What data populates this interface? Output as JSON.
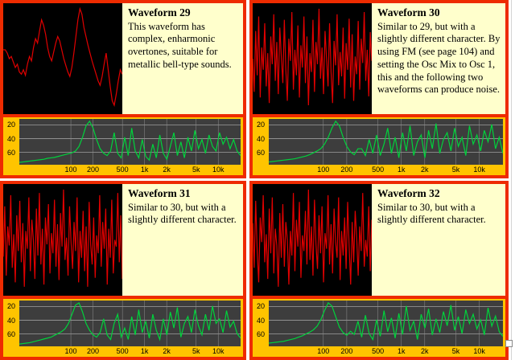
{
  "panels": [
    {
      "title": "Waveform 29",
      "description": "This waveform has complex, enharmonic overtones, suitable for metallic bell-type sounds.",
      "wave": [
        58,
        58,
        55,
        50,
        52,
        47,
        42,
        45,
        38,
        36,
        40,
        35,
        45,
        52,
        48,
        60,
        68,
        64,
        75,
        85,
        80,
        72,
        60,
        52,
        48,
        56,
        64,
        70,
        66,
        58,
        50,
        44,
        38,
        34,
        42,
        55,
        70,
        85,
        95,
        90,
        78,
        70,
        62,
        55,
        48,
        42,
        36,
        30,
        26,
        34,
        45,
        55,
        40,
        25,
        12,
        8,
        18,
        30,
        40,
        36
      ],
      "spectrum": [
        5,
        6,
        7,
        8,
        9,
        10,
        11,
        12,
        14,
        15,
        16,
        18,
        20,
        22,
        24,
        26,
        30,
        40,
        60,
        85,
        95,
        80,
        55,
        35,
        25,
        20,
        30,
        70,
        25,
        15,
        60,
        20,
        80,
        30,
        15,
        55,
        18,
        10,
        45,
        15,
        65,
        25,
        12,
        40,
        70,
        20,
        50,
        15,
        60,
        30,
        75,
        35,
        55,
        25,
        65,
        40,
        30,
        70,
        45,
        60,
        35,
        55,
        30,
        20
      ]
    },
    {
      "title": "Waveform 30",
      "description": "Similar to 29, but with a slightly different character. By using FM (see page 104) and setting the Osc Mix to Osc 1, this and the following two waveforms can produce noise.",
      "wave": [
        50,
        20,
        75,
        35,
        88,
        15,
        60,
        40,
        82,
        25,
        55,
        10,
        70,
        45,
        90,
        30,
        65,
        18,
        78,
        52,
        28,
        85,
        40,
        12,
        68,
        48,
        92,
        22,
        58,
        35,
        80,
        15,
        62,
        42,
        88,
        28,
        70,
        8,
        55,
        38,
        85,
        20,
        65,
        45,
        95,
        32,
        60,
        18,
        75,
        50,
        25,
        82,
        38,
        10,
        66,
        44,
        90,
        26,
        56,
        34,
        78,
        14,
        64,
        40,
        86,
        24,
        72,
        12,
        52,
        36,
        84,
        22,
        68,
        46,
        92,
        30,
        58,
        16,
        74,
        48
      ],
      "spectrum": [
        6,
        7,
        8,
        9,
        10,
        11,
        12,
        13,
        15,
        17,
        19,
        22,
        26,
        30,
        35,
        45,
        60,
        80,
        95,
        85,
        60,
        40,
        28,
        22,
        35,
        35,
        20,
        55,
        25,
        65,
        20,
        45,
        80,
        25,
        60,
        15,
        70,
        30,
        85,
        20,
        50,
        65,
        15,
        75,
        35,
        90,
        25,
        55,
        70,
        30,
        80,
        40,
        60,
        20,
        85,
        45,
        65,
        30,
        75,
        50,
        88,
        35,
        60,
        25
      ]
    },
    {
      "title": "Waveform 31",
      "description": "Similar to 30, but with a slightly different character.",
      "wave": [
        35,
        80,
        18,
        62,
        45,
        90,
        25,
        55,
        12,
        72,
        40,
        85,
        30,
        65,
        8,
        58,
        42,
        88,
        22,
        68,
        50,
        15,
        78,
        36,
        92,
        28,
        60,
        10,
        70,
        46,
        82,
        20,
        56,
        38,
        86,
        26,
        64,
        14,
        74,
        44,
        95,
        32,
        52,
        18,
        80,
        48,
        24,
        66,
        40,
        88,
        12,
        58,
        34,
        76,
        22,
        62,
        8,
        84,
        46,
        28,
        70,
        16,
        54,
        38,
        90,
        26,
        66,
        42,
        78,
        10,
        60,
        34,
        86,
        20,
        50,
        44,
        92,
        30,
        72,
        15
      ],
      "spectrum": [
        5,
        6,
        7,
        8,
        10,
        12,
        14,
        16,
        18,
        20,
        24,
        28,
        32,
        38,
        50,
        70,
        90,
        95,
        75,
        50,
        35,
        25,
        20,
        30,
        60,
        25,
        15,
        50,
        70,
        20,
        40,
        15,
        65,
        25,
        80,
        30,
        55,
        18,
        70,
        35,
        15,
        60,
        25,
        75,
        40,
        85,
        20,
        50,
        65,
        30,
        80,
        45,
        25,
        70,
        35,
        88,
        50,
        60,
        30,
        78,
        42,
        55,
        28,
        18
      ]
    },
    {
      "title": "Waveform 32",
      "description": "Similar to 30, but with a slightly different character.",
      "wave": [
        65,
        25,
        85,
        40,
        12,
        70,
        48,
        90,
        30,
        55,
        15,
        78,
        38,
        88,
        20,
        60,
        45,
        8,
        74,
        34,
        82,
        26,
        66,
        50,
        10,
        58,
        36,
        92,
        22,
        68,
        44,
        84,
        16,
        54,
        40,
        76,
        28,
        95,
        32,
        62,
        18,
        86,
        46,
        24,
        72,
        38,
        80,
        12,
        56,
        42,
        90,
        28,
        64,
        20,
        78,
        48,
        34,
        88,
        14,
        58,
        36,
        70,
        24,
        84,
        44,
        10,
        66,
        30,
        76,
        52,
        18,
        62,
        40,
        92,
        26,
        50,
        35,
        80,
        22,
        68
      ],
      "spectrum": [
        7,
        8,
        9,
        10,
        11,
        13,
        15,
        17,
        20,
        23,
        27,
        31,
        36,
        44,
        58,
        78,
        95,
        88,
        65,
        42,
        30,
        24,
        33,
        26,
        55,
        20,
        68,
        28,
        15,
        58,
        22,
        78,
        32,
        62,
        18,
        72,
        26,
        88,
        35,
        55,
        15,
        70,
        40,
        82,
        25,
        60,
        30,
        76,
        45,
        90,
        35,
        65,
        28,
        80,
        50,
        70,
        38,
        58,
        25,
        84,
        44,
        66,
        32,
        22
      ]
    }
  ],
  "axis": {
    "y_ticks": [
      {
        "label": "20",
        "pos": 0.13
      },
      {
        "label": "40",
        "pos": 0.43
      },
      {
        "label": "60",
        "pos": 0.73
      }
    ],
    "x_ticks": [
      {
        "label": "100",
        "pos": 0.233
      },
      {
        "label": "200",
        "pos": 0.333
      },
      {
        "label": "500",
        "pos": 0.466
      },
      {
        "label": "1k",
        "pos": 0.566
      },
      {
        "label": "2k",
        "pos": 0.666
      },
      {
        "label": "5k",
        "pos": 0.799
      },
      {
        "label": "10k",
        "pos": 0.899
      }
    ]
  },
  "colors": {
    "border": "#ee2b00",
    "panel_bg": "#ffffcc",
    "scope_bg": "#000000",
    "wave": "#e00000",
    "spectrum": "#00d23c",
    "axis_bg": "#ffc400",
    "plot_bg": "#3d3d3d",
    "grid": "#909090"
  }
}
